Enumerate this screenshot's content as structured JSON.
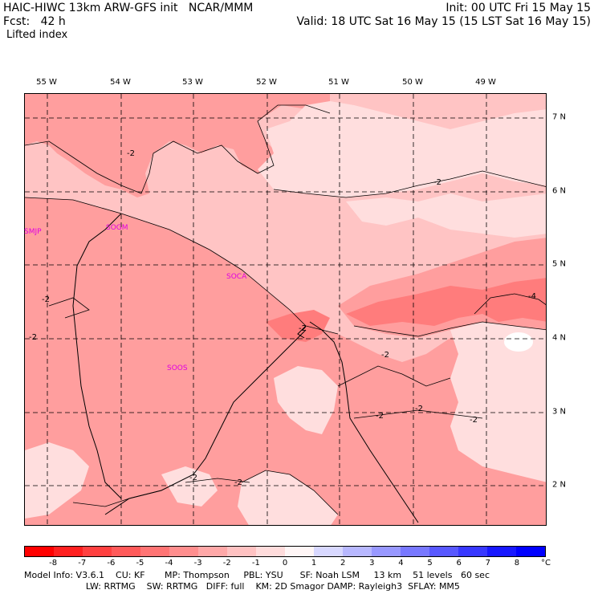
{
  "header": {
    "model_line": "HAIC-HIWC 13km ARW-GFS init   NCAR/MMM",
    "fcst_label": "Fcst:   42 h",
    "field_name": "Lifted index",
    "init_time": "Init: 00 UTC Fri 15 May 15",
    "valid_time": "Valid: 18 UTC Sat 16 May 15 (15 LST Sat 16 May 15)"
  },
  "longitude_labels": [
    "55 W",
    "54 W",
    "53 W",
    "52 W",
    "51 W",
    "50 W",
    "49 W"
  ],
  "latitude_labels": [
    "7 N",
    "6 N",
    "5 N",
    "4 N",
    "3 N",
    "2 N"
  ],
  "stations": [
    "SMJP",
    "SOGM",
    "SOCA",
    "SOOS"
  ],
  "contour_labels": [
    "-2",
    "-2",
    "-2",
    "-2",
    "-2",
    "-2",
    "-2",
    "-2",
    "-2",
    "-2",
    "-2",
    "-4"
  ],
  "colorbar": {
    "ticks": [
      "-8",
      "-7",
      "-6",
      "-5",
      "-4",
      "-3",
      "-2",
      "-1",
      "0",
      "1",
      "2",
      "3",
      "4",
      "5",
      "6",
      "7",
      "8"
    ],
    "unit": "°C",
    "colors": [
      "#ff0000",
      "#ff2020",
      "#ff4040",
      "#ff5a5a",
      "#ff7474",
      "#ff8e8e",
      "#ffa8a8",
      "#ffc2c2",
      "#ffdcdc",
      "#fff6f6",
      "#d8d8ff",
      "#b8b8ff",
      "#9898ff",
      "#7878ff",
      "#5858ff",
      "#3838ff",
      "#1818ff",
      "#0000ff"
    ]
  },
  "footer": {
    "line1": "Model Info: V3.6.1    CU: KF       MP: Thompson     PBL: YSU      SF: Noah LSM     13 km    51 levels   60 sec",
    "line2": "                      LW: RRTMG    SW: RRTMG   DIFF: full    KM: 2D Smagor DAMP: Rayleigh3  SFLAY: MM5"
  },
  "map_colors": {
    "base": "#ffc4c4",
    "mid": "#ff9e9e",
    "dark": "#ff7c7c",
    "light": "#ffdede"
  }
}
